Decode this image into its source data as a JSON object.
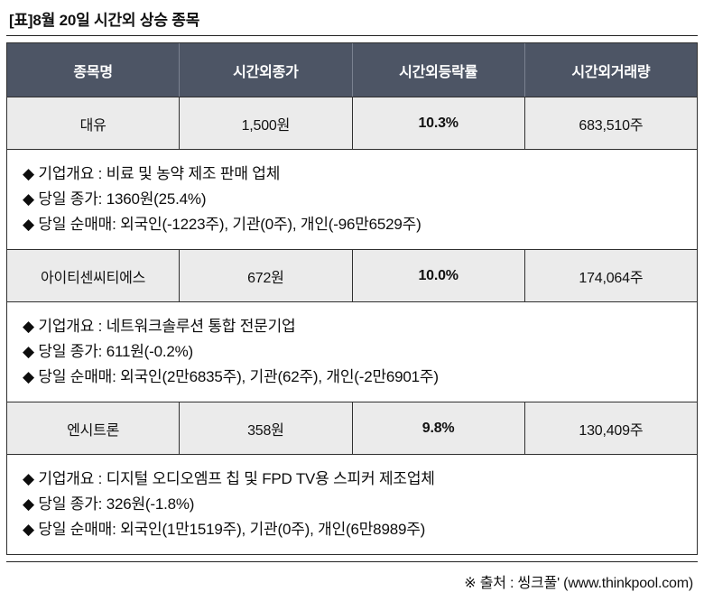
{
  "title": "[표]8월 20일 시간외 상승 종목",
  "table": {
    "headers": [
      "종목명",
      "시간외종가",
      "시간외등락률",
      "시간외거래량"
    ],
    "rows": [
      {
        "name": "대유",
        "close": "1,500원",
        "change": "10.3%",
        "volume": "683,510주",
        "details": [
          "◆ 기업개요 : 비료 및 농약 제조 판매 업체",
          "◆ 당일 종가: 1360원(25.4%)",
          "◆ 당일 순매매: 외국인(-1223주), 기관(0주), 개인(-96만6529주)"
        ]
      },
      {
        "name": "아이티센씨티에스",
        "close": "672원",
        "change": "10.0%",
        "volume": "174,064주",
        "details": [
          "◆ 기업개요 : 네트워크솔루션 통합 전문기업",
          "◆ 당일 종가: 611원(-0.2%)",
          "◆ 당일 순매매: 외국인(2만6835주), 기관(62주), 개인(-2만6901주)"
        ]
      },
      {
        "name": "엔시트론",
        "close": "358원",
        "change": "9.8%",
        "volume": "130,409주",
        "details": [
          "◆ 기업개요 : 디지털 오디오엠프 칩 및 FPD TV용 스피커 제조업체",
          "◆ 당일 종가: 326원(-1.8%)",
          "◆ 당일 순매매: 외국인(1만1519주), 기관(0주), 개인(6만8989주)"
        ]
      }
    ]
  },
  "source": "※ 출처 : 씽크풀' (www.thinkpool.com)",
  "colors": {
    "header_bg": "#4d5565",
    "row_bg": "#ebebeb",
    "change_red": "#e3191d",
    "border": "#2f2f2f"
  }
}
